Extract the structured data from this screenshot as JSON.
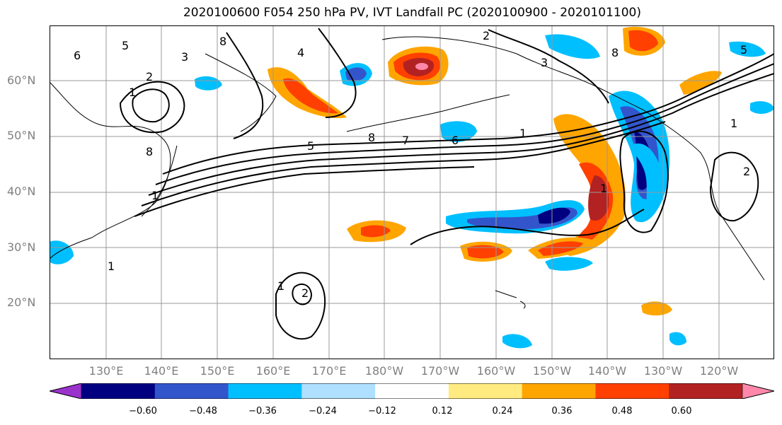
{
  "title": "2020100600 F054 250 hPa PV, IVT Landfall PC (2020100900 - 2020101100)",
  "lat_labels": [
    "60°N",
    "50°N",
    "40°N",
    "30°N",
    "20°N"
  ],
  "lon_labels": [
    "130°E",
    "140°E",
    "150°E",
    "160°E",
    "170°E",
    "180°W",
    "170°W",
    "160°W",
    "150°W",
    "140°W",
    "130°W",
    "120°W"
  ],
  "contour_labels": [
    "6",
    "5",
    "3",
    "8",
    "2",
    "1",
    "4",
    "7"
  ],
  "colorbar": {
    "ticks": [
      "−0.60",
      "−0.48",
      "−0.36",
      "−0.24",
      "−0.12",
      "0.12",
      "0.24",
      "0.36",
      "0.48",
      "0.60"
    ],
    "colors": [
      "#9933cc",
      "#000080",
      "#3355cc",
      "#00bfff",
      "#b0e0ff",
      "#ffffff",
      "#ffeb80",
      "#ffa500",
      "#ff4000",
      "#b22222",
      "#ff88aa"
    ]
  }
}
